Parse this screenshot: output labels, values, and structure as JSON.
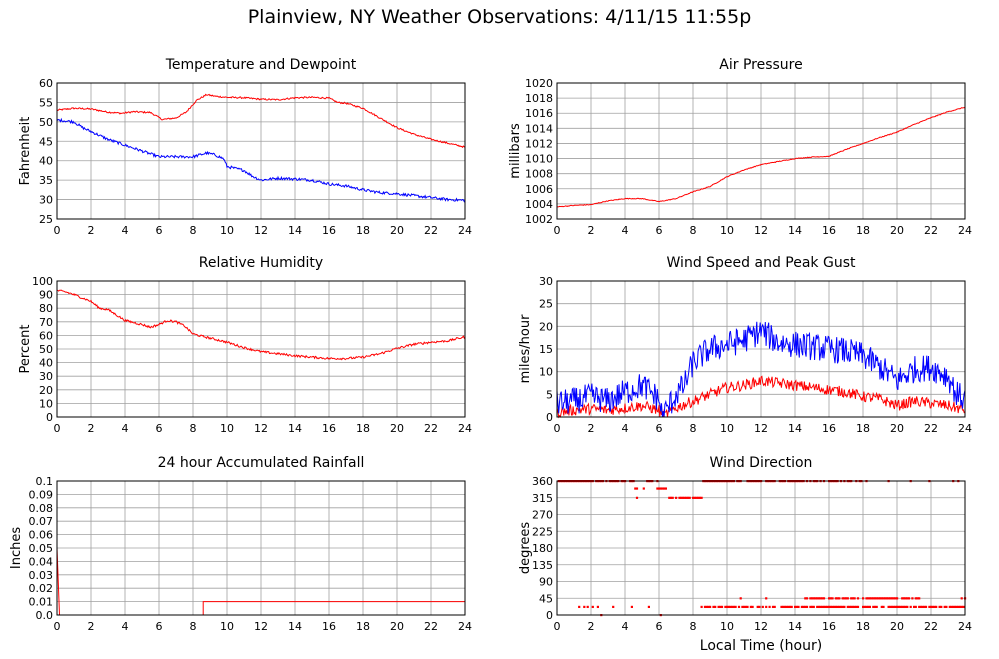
{
  "title": "Plainview, NY Weather Observations: 4/11/15 11:55p",
  "colors": {
    "red": "#ff0000",
    "blue": "#0000ff",
    "grid": "#a0a0a0",
    "frame": "#000000"
  },
  "chart_data": [
    {
      "id": "temp",
      "type": "line",
      "title": "Temperature and Dewpoint",
      "ylabel": "Fahrenheit",
      "xlabel": "",
      "xlim": [
        0,
        24
      ],
      "ylim": [
        25,
        60
      ],
      "yticks": [
        25,
        30,
        35,
        40,
        45,
        50,
        55,
        60
      ],
      "xticks": [
        0,
        2,
        4,
        6,
        8,
        10,
        12,
        14,
        16,
        18,
        20,
        22,
        24
      ],
      "grid": true,
      "series": [
        {
          "color": "#ff0000",
          "noise": 0.2,
          "x": [
            0,
            1,
            2,
            3,
            3.8,
            4.5,
            5.5,
            6.2,
            7,
            7.6,
            8.2,
            8.8,
            9.3,
            10,
            11,
            12,
            13,
            14,
            15,
            16,
            16.5,
            17,
            18,
            19,
            20,
            21,
            22,
            23,
            24
          ],
          "y": [
            53,
            53.5,
            53.3,
            52.5,
            52.2,
            52.6,
            52.4,
            50.6,
            51,
            52.5,
            55.5,
            57,
            56.6,
            56.3,
            56.2,
            55.8,
            55.7,
            56.2,
            56.3,
            56.1,
            55,
            54.8,
            53.5,
            51,
            48.5,
            46.8,
            45.5,
            44.5,
            43.5
          ]
        },
        {
          "color": "#0000ff",
          "noise": 0.35,
          "x": [
            0,
            1,
            1.5,
            2,
            3,
            4,
            5,
            6,
            7,
            8,
            8.8,
            9.3,
            9.8,
            10,
            10.5,
            11,
            11.5,
            12,
            13,
            14,
            15,
            16,
            17,
            18,
            19,
            20,
            21,
            22,
            23,
            24
          ],
          "y": [
            50.5,
            50,
            48.5,
            47.5,
            45.5,
            44,
            42.5,
            41,
            41,
            41,
            42,
            41.5,
            40.5,
            38.5,
            38,
            37.5,
            36,
            35,
            35.5,
            35.3,
            35,
            34,
            33.5,
            32.5,
            31.8,
            31.5,
            31,
            30.5,
            30,
            29.8
          ]
        }
      ]
    },
    {
      "id": "pressure",
      "type": "line",
      "title": "Air Pressure",
      "ylabel": "millibars",
      "xlabel": "",
      "xlim": [
        0,
        24
      ],
      "ylim": [
        1002,
        1020
      ],
      "yticks": [
        1002,
        1004,
        1006,
        1008,
        1010,
        1012,
        1014,
        1016,
        1018,
        1020
      ],
      "xticks": [
        0,
        2,
        4,
        6,
        8,
        10,
        12,
        14,
        16,
        18,
        20,
        22,
        24
      ],
      "grid": true,
      "series": [
        {
          "color": "#ff0000",
          "noise": 0.05,
          "x": [
            0,
            1,
            2,
            3,
            4,
            5,
            6,
            7,
            8,
            9,
            10,
            11,
            12,
            13,
            14,
            15,
            16,
            17,
            18,
            19,
            20,
            21,
            22,
            23,
            24
          ],
          "y": [
            1003.6,
            1003.8,
            1003.9,
            1004.4,
            1004.7,
            1004.7,
            1004.3,
            1004.7,
            1005.6,
            1006.3,
            1007.6,
            1008.5,
            1009.2,
            1009.6,
            1010,
            1010.2,
            1010.3,
            1011.2,
            1012,
            1012.8,
            1013.5,
            1014.5,
            1015.4,
            1016.2,
            1016.8
          ]
        }
      ]
    },
    {
      "id": "humidity",
      "type": "line",
      "title": "Relative Humidity",
      "ylabel": "Percent",
      "xlabel": "",
      "xlim": [
        0,
        24
      ],
      "ylim": [
        0,
        100
      ],
      "yticks": [
        0,
        10,
        20,
        30,
        40,
        50,
        60,
        70,
        80,
        90,
        100
      ],
      "xticks": [
        0,
        2,
        4,
        6,
        8,
        10,
        12,
        14,
        16,
        18,
        20,
        22,
        24
      ],
      "grid": true,
      "series": [
        {
          "color": "#ff0000",
          "noise": 0.8,
          "x": [
            0,
            0.5,
            1,
            2,
            2.5,
            3,
            4,
            5,
            5.5,
            6,
            6.5,
            7,
            7.5,
            8,
            9,
            10,
            11,
            12,
            13,
            14,
            15,
            16,
            17,
            18,
            19,
            20,
            21,
            22,
            23,
            24
          ],
          "y": [
            93,
            92,
            90,
            85,
            80,
            79,
            71,
            68,
            66,
            68,
            71,
            70,
            67,
            61,
            58,
            55,
            51,
            48,
            46.5,
            45,
            44,
            43,
            43,
            44,
            46.5,
            50.5,
            53.5,
            55,
            56,
            59
          ]
        }
      ]
    },
    {
      "id": "wind",
      "type": "line",
      "title": "Wind Speed and Peak Gust",
      "ylabel": "miles/hour",
      "xlabel": "",
      "xlim": [
        0,
        24
      ],
      "ylim": [
        0,
        30
      ],
      "yticks": [
        0,
        5,
        10,
        15,
        20,
        25,
        30
      ],
      "xticks": [
        0,
        2,
        4,
        6,
        8,
        10,
        12,
        14,
        16,
        18,
        20,
        22,
        24
      ],
      "grid": true,
      "series": [
        {
          "color": "#ff0000",
          "noise": 1.2,
          "x": [
            0,
            1,
            2,
            3,
            4,
            5,
            6,
            6.2,
            7,
            8,
            9,
            10,
            11,
            12,
            13,
            14,
            15,
            16,
            17,
            18,
            19,
            20,
            21,
            22,
            23,
            24
          ],
          "y": [
            1,
            1.5,
            1.8,
            1.5,
            2,
            2.5,
            1.5,
            0,
            2,
            3.5,
            5,
            6.5,
            7,
            8,
            7.5,
            7,
            6.5,
            6,
            5.5,
            4.5,
            4,
            2.5,
            3.5,
            3,
            2.5,
            1.5
          ]
        },
        {
          "color": "#0000ff",
          "noise": 3,
          "x": [
            0,
            1,
            2,
            3,
            4,
            5,
            6,
            6.2,
            7,
            7.5,
            8,
            9,
            10,
            11,
            12,
            13,
            14,
            15,
            16,
            17,
            18,
            19,
            20,
            21,
            22,
            23,
            23.5,
            24
          ],
          "y": [
            3,
            3.5,
            4.5,
            3.5,
            5.5,
            7,
            4,
            0,
            5,
            7,
            12,
            15,
            16,
            17,
            19,
            16.5,
            16,
            15.5,
            15,
            14.5,
            13.5,
            11,
            8,
            10.5,
            11,
            9,
            5,
            4
          ]
        }
      ]
    },
    {
      "id": "rain",
      "type": "line",
      "title": "24 hour Accumulated Rainfall",
      "ylabel": "Inches",
      "xlabel": "",
      "xlim": [
        0,
        24
      ],
      "ylim": [
        0,
        0.1
      ],
      "yticks": [
        0,
        0.01,
        0.02,
        0.03,
        0.04,
        0.05,
        0.06,
        0.07,
        0.08,
        0.09,
        0.1
      ],
      "yticklabels": [
        "0.0",
        "0.01",
        "0.02",
        "0.03",
        "0.04",
        "0.05",
        "0.06",
        "0.07",
        "0.08",
        "0.09",
        "0.1"
      ],
      "xticks": [
        0,
        2,
        4,
        6,
        8,
        10,
        12,
        14,
        16,
        18,
        20,
        22,
        24
      ],
      "grid": true,
      "series": [
        {
          "color": "#ff0000",
          "noise": 0,
          "x": [
            0,
            0.15,
            8.6,
            8.6,
            24
          ],
          "y": [
            0.05,
            0,
            0,
            0.01,
            0.01
          ]
        }
      ]
    },
    {
      "id": "direction",
      "type": "scatter",
      "title": "Wind Direction",
      "ylabel": "degrees",
      "xlabel": "Local Time (hour)",
      "xlim": [
        0,
        24
      ],
      "ylim": [
        0,
        360
      ],
      "yticks": [
        0,
        45,
        90,
        135,
        180,
        225,
        270,
        315,
        360
      ],
      "xticks": [
        0,
        2,
        4,
        6,
        8,
        10,
        12,
        14,
        16,
        18,
        20,
        22,
        24
      ],
      "grid": true,
      "series": [
        {
          "color": "#ff0000",
          "segments": [
            {
              "x0": 0,
              "x1": 4.5,
              "y": 360
            },
            {
              "x0": 4.5,
              "x1": 5.2,
              "y": 340
            },
            {
              "x0": 5.3,
              "x1": 5.9,
              "y": 360
            },
            {
              "x0": 5.9,
              "x1": 6.5,
              "y": 340
            },
            {
              "x0": 6.6,
              "x1": 8.5,
              "y": 315
            },
            {
              "x0": 8.6,
              "x1": 18.5,
              "y": 360
            },
            {
              "x0": 14.5,
              "x1": 21.5,
              "y": 45
            },
            {
              "x0": 8.5,
              "x1": 24,
              "y": 22
            }
          ],
          "points": [
            {
              "x": 1.3,
              "y": 22
            },
            {
              "x": 1.6,
              "y": 22
            },
            {
              "x": 1.8,
              "y": 22
            },
            {
              "x": 2.1,
              "y": 22
            },
            {
              "x": 2.4,
              "y": 22
            },
            {
              "x": 2.6,
              "y": 0
            },
            {
              "x": 3.3,
              "y": 22
            },
            {
              "x": 4.4,
              "y": 22
            },
            {
              "x": 4.7,
              "y": 315
            },
            {
              "x": 5.4,
              "y": 22
            },
            {
              "x": 6.1,
              "y": 0
            },
            {
              "x": 19.5,
              "y": 360
            },
            {
              "x": 20.8,
              "y": 360
            },
            {
              "x": 21.9,
              "y": 360
            },
            {
              "x": 23.3,
              "y": 360
            },
            {
              "x": 23.6,
              "y": 360
            },
            {
              "x": 23.8,
              "y": 45
            },
            {
              "x": 24,
              "y": 45
            },
            {
              "x": 10.8,
              "y": 45
            },
            {
              "x": 12.3,
              "y": 45
            }
          ]
        }
      ]
    }
  ]
}
